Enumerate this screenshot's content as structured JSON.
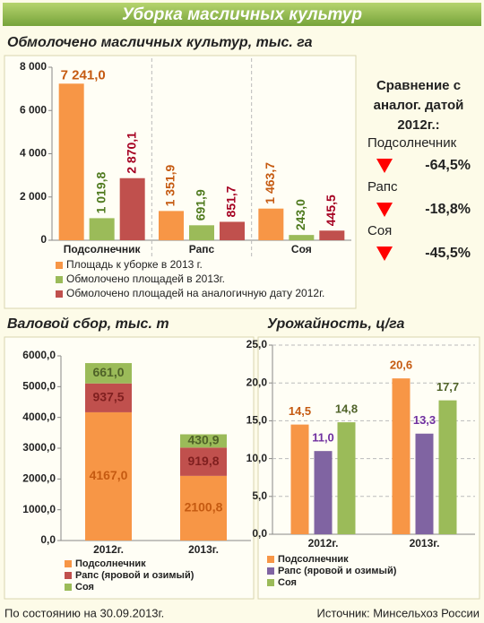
{
  "header": {
    "title": "Уборка масличных культур"
  },
  "chart_data": [
    {
      "type": "bar",
      "title": "Обмолочено масличных культур, тыс. га",
      "categories": [
        "Подсолнечник",
        "Рапс",
        "Соя"
      ],
      "series": [
        {
          "name": "Площадь к уборке в 2013 г.",
          "color": "#f79646",
          "label_color": "#c55a11",
          "values": [
            7241.0,
            1351.9,
            1463.7
          ],
          "value_labels": [
            "7 241,0",
            "1 351,9",
            "1 463,7"
          ]
        },
        {
          "name": "Обмолочено площадей в 2013г.",
          "color": "#9bbb59",
          "label_color": "#4f7a1e",
          "values": [
            1019.8,
            691.9,
            243.0
          ],
          "value_labels": [
            "1 019,8",
            "691,9",
            "243,0"
          ]
        },
        {
          "name": "Обмолочено площадей на аналогичную дату 2012г.",
          "color": "#c0504d",
          "label_color": "#a50021",
          "values": [
            2870.1,
            851.7,
            445.5
          ],
          "value_labels": [
            "2 870,1",
            "851,7",
            "445,5"
          ]
        }
      ],
      "ylim": [
        0,
        8000
      ],
      "yticks": [
        0,
        {
          "value": 2000,
          "label": "2 000"
        },
        {
          "value": 4000,
          "label": "4 000"
        },
        {
          "value": 6000,
          "label": "6 000"
        },
        {
          "value": 8000,
          "label": "8 000"
        }
      ],
      "label_rotation": true,
      "grid": false
    },
    {
      "type": "stacked_bar",
      "title": "Валовой сбор, тыс. т",
      "categories": [
        "2012г.",
        "2013г."
      ],
      "series": [
        {
          "name": "Подсолнечник",
          "color": "#f79646",
          "label_color": "#c55a11",
          "values": [
            4167.0,
            2100.8
          ],
          "value_labels": [
            "4167,0",
            "2100,8"
          ]
        },
        {
          "name": "Рапс (яровой и озимый)",
          "color": "#c0504d",
          "label_color": "#7f1f1f",
          "values": [
            937.5,
            919.8
          ],
          "value_labels": [
            "937,5",
            "919,8"
          ]
        },
        {
          "name": "Соя",
          "color": "#9bbb59",
          "label_color": "#4f6228",
          "values": [
            661.0,
            430.9
          ],
          "value_labels": [
            "661,0",
            "430,9"
          ]
        }
      ],
      "ylim": [
        0,
        6000
      ],
      "yticks": [
        {
          "value": 0,
          "label": "0,0"
        },
        {
          "value": 1000,
          "label": "1000,0"
        },
        {
          "value": 2000,
          "label": "2000,0"
        },
        {
          "value": 3000,
          "label": "3000,0"
        },
        {
          "value": 4000,
          "label": "4000,0"
        },
        {
          "value": 5000,
          "label": "5000,0"
        },
        {
          "value": 6000,
          "label": "6000,0"
        }
      ],
      "grid": false
    },
    {
      "type": "bar",
      "title": "Урожайность, ц/га",
      "categories": [
        "2012г.",
        "2013г."
      ],
      "series": [
        {
          "name": "Подсолнечник",
          "color": "#f79646",
          "label_color": "#c55a11",
          "values": [
            14.5,
            20.6
          ],
          "value_labels": [
            "14,5",
            "20,6"
          ]
        },
        {
          "name": "Рапс (яровой и озимый)",
          "color": "#8064a2",
          "label_color": "#7030a0",
          "values": [
            11.0,
            13.3
          ],
          "value_labels": [
            "11,0",
            "13,3"
          ]
        },
        {
          "name": "Соя",
          "color": "#9bbb59",
          "label_color": "#4f6228",
          "values": [
            14.8,
            17.7
          ],
          "value_labels": [
            "14,8",
            "17,7"
          ]
        }
      ],
      "ylim": [
        0,
        25
      ],
      "yticks": [
        {
          "value": 0,
          "label": "0,0"
        },
        {
          "value": 5,
          "label": "5,0"
        },
        {
          "value": 10,
          "label": "10,0"
        },
        {
          "value": 15,
          "label": "15,0"
        },
        {
          "value": 20,
          "label": "20,0"
        },
        {
          "value": 25,
          "label": "25,0"
        }
      ],
      "label_rotation": false,
      "grid": true
    }
  ],
  "comparison": {
    "title": [
      "Сравнение с",
      "аналог. датой",
      "2012г.:"
    ],
    "items": [
      {
        "name": "Подсолнечник",
        "value": "-64,5%"
      },
      {
        "name": "Рапс",
        "value": "-18,8%"
      },
      {
        "name": "Соя",
        "value": "-45,5%"
      }
    ]
  },
  "footer": {
    "date": "По состоянию на 30.09.2013г.",
    "source": "Источник: Минсельхоз России"
  }
}
